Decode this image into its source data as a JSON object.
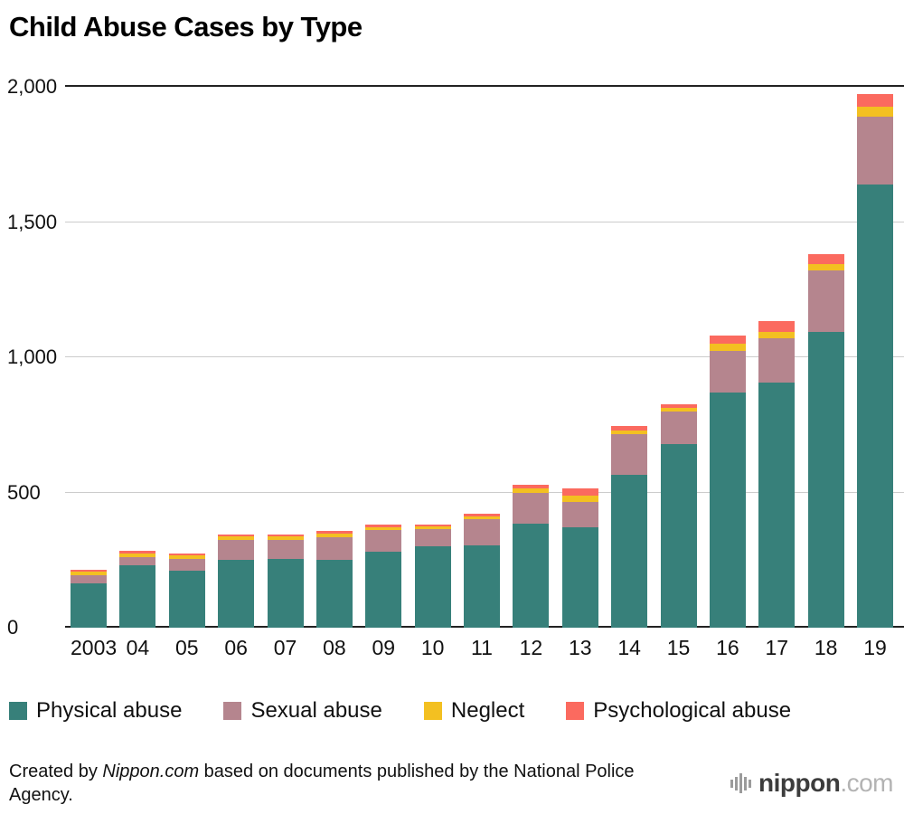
{
  "title": "Child Abuse Cases by Type",
  "chart_data": {
    "type": "bar",
    "stacked": true,
    "title": "Child Abuse Cases by Type",
    "categories": [
      "2003",
      "04",
      "05",
      "06",
      "07",
      "08",
      "09",
      "10",
      "11",
      "12",
      "13",
      "14",
      "15",
      "16",
      "17",
      "18",
      "19"
    ],
    "series": [
      {
        "name": "Physical abuse",
        "color": "#37807a",
        "values": [
          165,
          230,
          210,
          250,
          255,
          250,
          280,
          300,
          305,
          385,
          370,
          565,
          680,
          870,
          905,
          1095,
          1640
        ]
      },
      {
        "name": "Sexual abuse",
        "color": "#b5858e",
        "values": [
          30,
          30,
          45,
          75,
          70,
          85,
          80,
          65,
          95,
          115,
          95,
          150,
          120,
          155,
          165,
          225,
          250
        ]
      },
      {
        "name": "Neglect",
        "color": "#f3c021",
        "values": [
          12,
          15,
          12,
          12,
          12,
          12,
          12,
          10,
          12,
          15,
          25,
          15,
          12,
          25,
          25,
          25,
          35
        ]
      },
      {
        "name": "Psychological abuse",
        "color": "#fb6a5f",
        "values": [
          8,
          8,
          8,
          8,
          8,
          10,
          10,
          8,
          10,
          12,
          25,
          15,
          15,
          30,
          40,
          35,
          50
        ]
      }
    ],
    "ylim": [
      0,
      2000
    ],
    "yticks": [
      {
        "value": 0,
        "label": "0"
      },
      {
        "value": 500,
        "label": "500"
      },
      {
        "value": 1000,
        "label": "1,000"
      },
      {
        "value": 1500,
        "label": "1,500"
      },
      {
        "value": 2000,
        "label": "2,000"
      }
    ],
    "grid": true,
    "legend_position": "bottom"
  },
  "footer": {
    "credit_prefix": "Created by ",
    "credit_source": "Nippon.com",
    "credit_suffix": " based on documents published by the National Police Agency.",
    "logo_text": "nippon",
    "logo_suffix": ".com"
  }
}
